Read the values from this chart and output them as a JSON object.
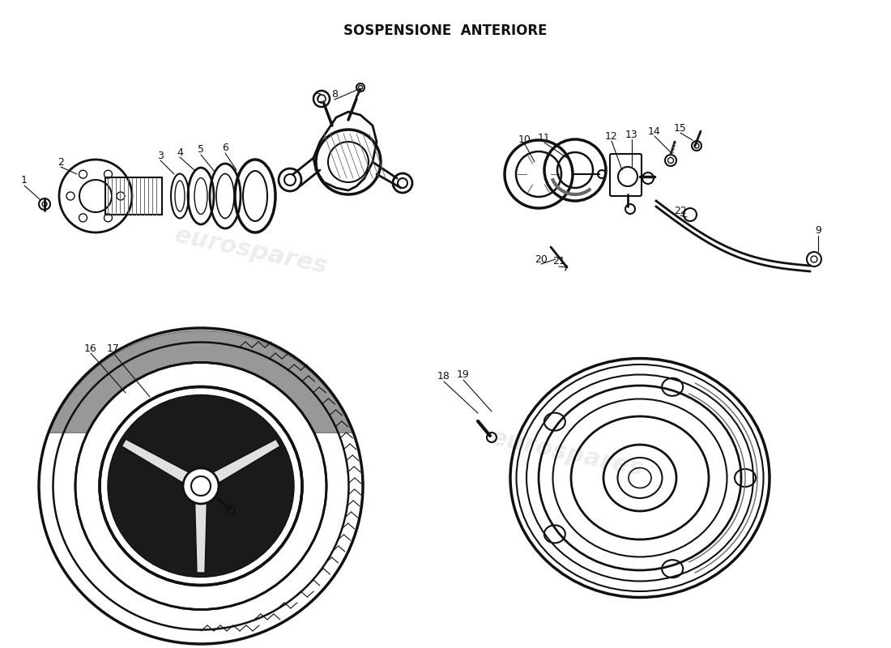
{
  "title": "SOSPENSIONE  ANTERIORE",
  "background_color": "#ffffff",
  "fig_width": 11.0,
  "fig_height": 8.0,
  "dpi": 100
}
